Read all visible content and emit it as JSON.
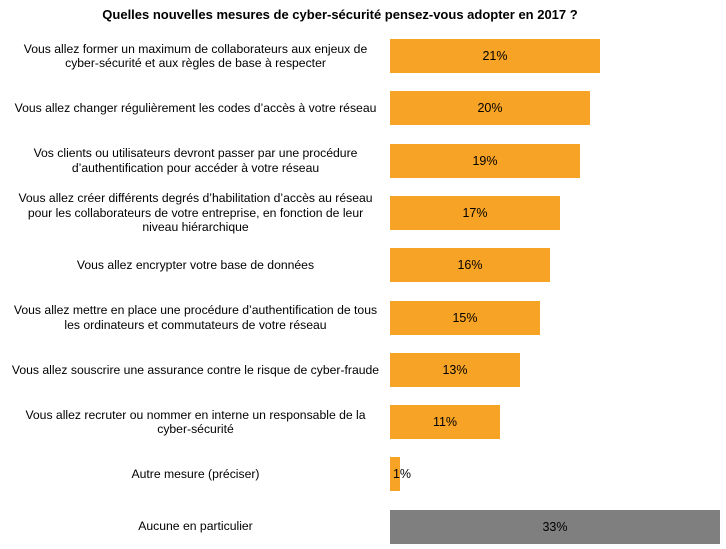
{
  "chart_data": {
    "type": "bar",
    "orientation": "horizontal",
    "title": "Quelles nouvelles mesures de cyber-sécurité pensez-vous adopter en 2017 ?",
    "categories": [
      "Vous allez former un maximum de collaborateurs aux enjeux de cyber-sécurité et aux règles de base à respecter",
      "Vous allez changer régulièrement les codes d’accès à votre réseau",
      "Vos clients ou utilisateurs devront passer par une procédure d’authentification pour accéder à votre réseau",
      "Vous allez créer différents degrés d’habilitation d’accès au réseau pour les collaborateurs de votre entreprise, en fonction de leur niveau hiérarchique",
      "Vous allez encrypter votre base de données",
      "Vous allez mettre en place une procédure d’authentification de tous les ordinateurs et commutateurs de votre réseau",
      "Vous allez souscrire une assurance contre le risque de cyber-fraude",
      "Vous allez recruter ou nommer en interne un responsable de la cyber-sécurité",
      "Autre mesure (préciser)",
      "Aucune en particulier"
    ],
    "values": [
      21,
      20,
      19,
      17,
      16,
      15,
      13,
      11,
      1,
      33
    ],
    "value_labels": [
      "21%",
      "20%",
      "19%",
      "17%",
      "16%",
      "15%",
      "13%",
      "11%",
      "1%",
      "33%"
    ],
    "xlim": [
      0,
      33
    ],
    "colors": [
      "#f7a325",
      "#f7a325",
      "#f7a325",
      "#f7a325",
      "#f7a325",
      "#f7a325",
      "#f7a325",
      "#f7a325",
      "#f7a325",
      "#7f7f7f"
    ],
    "grid": false,
    "legend": "none"
  }
}
